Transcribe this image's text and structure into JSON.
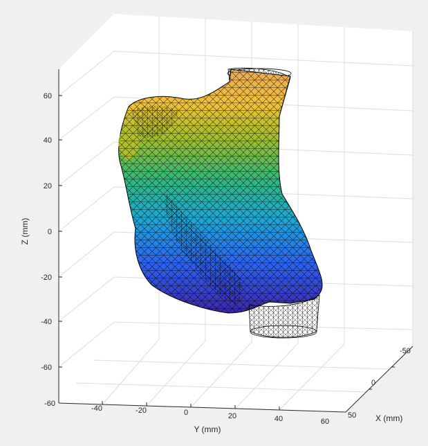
{
  "chart_data": {
    "type": "surface",
    "title": "",
    "xlabel": "X (mm)",
    "ylabel": "Y (mm)",
    "zlabel": "Z (mm)",
    "xlim": [
      -60,
      60
    ],
    "ylim": [
      -60,
      60
    ],
    "zlim": [
      -70,
      70
    ],
    "grid": true,
    "x_ticks": [
      "-50",
      "0",
      "50"
    ],
    "y_ticks": [
      "-60",
      "-40",
      "-20",
      "0",
      "20",
      "40",
      "60"
    ],
    "z_ticks": [
      "-60",
      "-40",
      "-20",
      "0",
      "20",
      "40",
      "60"
    ],
    "colormap": "parula",
    "colormap_colors": [
      "#3e26a8",
      "#2c62f0",
      "#1ca5d7",
      "#30b87a",
      "#a3bd29",
      "#f1c137",
      "#f9e314"
    ],
    "mesh_color": "#000000",
    "series": [
      {
        "value_range_z_mm": [
          -48,
          67
        ]
      }
    ]
  }
}
